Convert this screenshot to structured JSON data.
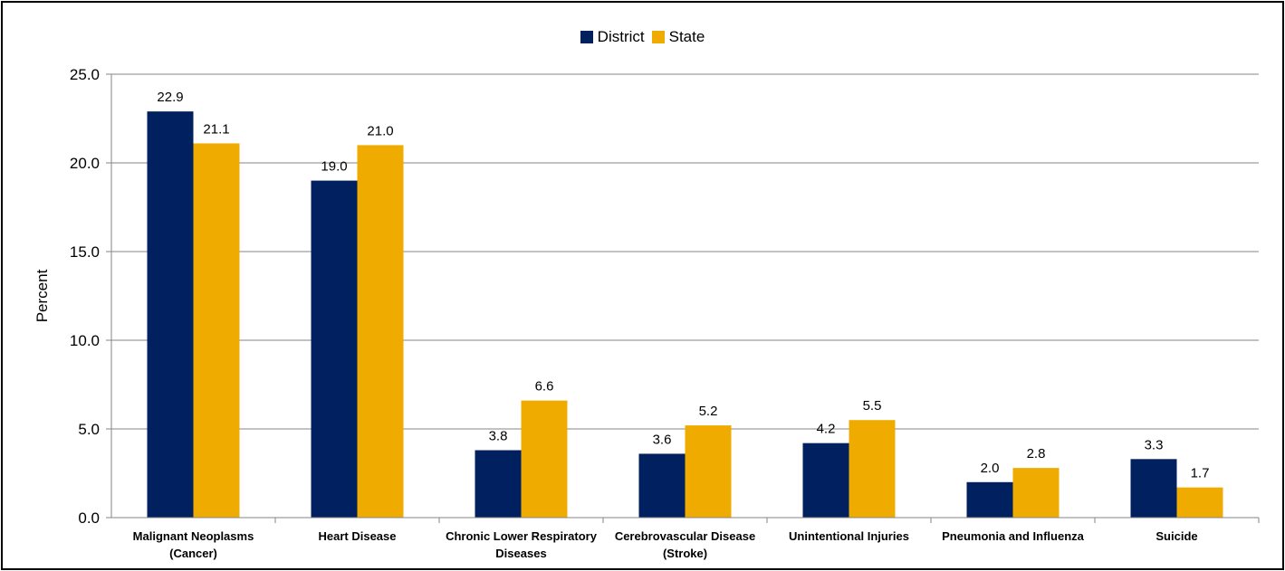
{
  "chart_data": {
    "type": "bar",
    "ylabel": "Percent",
    "ylim": [
      0,
      25
    ],
    "yticks": [
      "0.0",
      "5.0",
      "10.0",
      "15.0",
      "20.0",
      "25.0"
    ],
    "categories": [
      [
        "Malignant Neoplasms",
        "(Cancer)"
      ],
      [
        "Heart Disease"
      ],
      [
        "Chronic Lower Respiratory",
        "Diseases"
      ],
      [
        "Cerebrovascular Disease",
        "(Stroke)"
      ],
      [
        "Unintentional Injuries"
      ],
      [
        "Pneumonia and Influenza"
      ],
      [
        "Suicide"
      ]
    ],
    "series": [
      {
        "name": "District",
        "color": "#002060",
        "values": [
          22.9,
          19.0,
          3.8,
          3.6,
          4.2,
          2.0,
          3.3
        ]
      },
      {
        "name": "State",
        "color": "#F0AB00",
        "values": [
          21.1,
          21.0,
          6.6,
          5.2,
          5.5,
          2.8,
          1.7
        ]
      }
    ],
    "grid": true,
    "legend_position": "top-center"
  }
}
